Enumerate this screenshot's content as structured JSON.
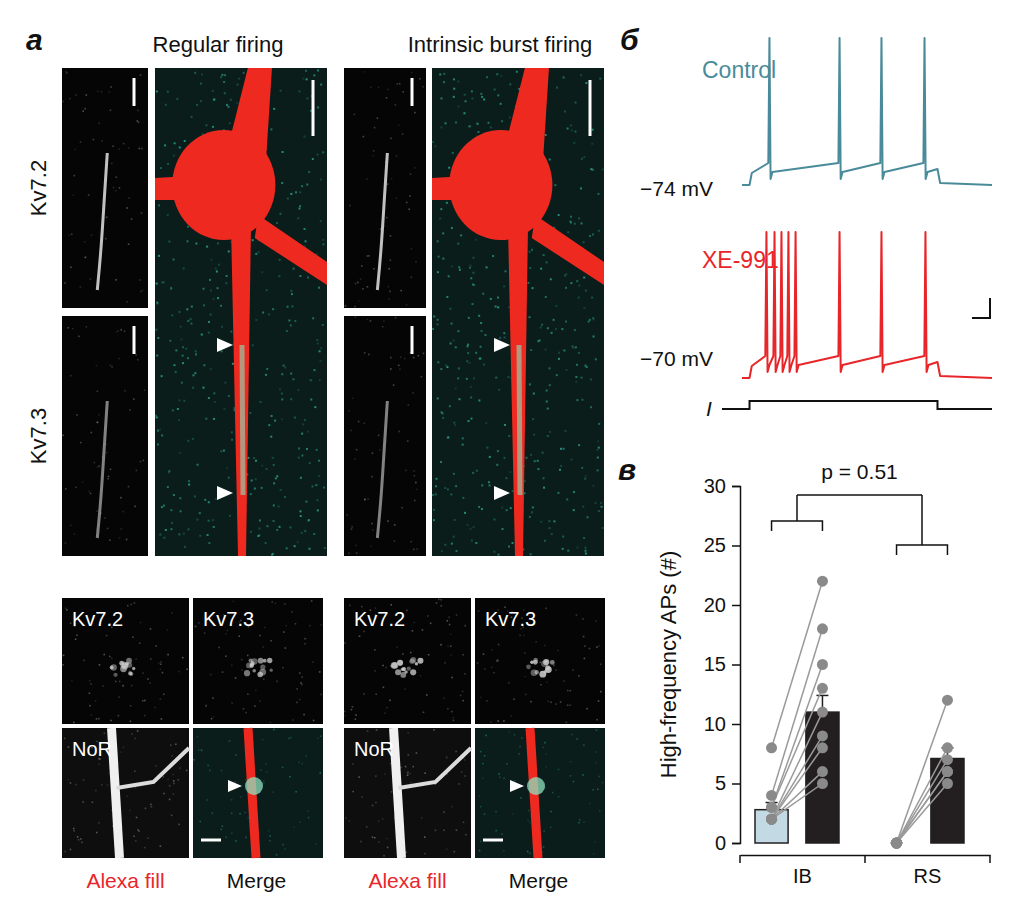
{
  "figure": {
    "panel_a": {
      "label": "а",
      "columns": [
        "Regular firing",
        "Intrinsic burst firing"
      ],
      "rows": [
        "Kv7.2",
        "Kv7.3"
      ],
      "lower": {
        "top_left": "Kv7.2",
        "top_right": "Kv7.3",
        "bottom_left": "NoR",
        "caption_left": "Alexa fill",
        "caption_right": "Merge"
      }
    },
    "panel_b": {
      "label": "б",
      "stimulus": "I",
      "step": [
        0,
        1000
      ],
      "xlim": [
        -40,
        1290
      ],
      "traces": [
        {
          "name": "Control",
          "color": "#4a8b9a",
          "baseline": "−74 mV",
          "spikes": [
            106,
            479,
            702,
            931
          ]
        },
        {
          "name": "XE-991",
          "color": "#e8262a",
          "baseline": "−70 mV",
          "spikes": [
            90,
            133,
            170,
            207,
            245,
            479,
            702,
            936
          ]
        }
      ]
    }
  },
  "chart_data": {
    "type": "bar",
    "title": "в",
    "ylabel": "High-frequency APs (#)",
    "categories": [
      "IB",
      "RS"
    ],
    "ylim": [
      0,
      30
    ],
    "yticks": [
      0,
      5,
      10,
      15,
      20,
      25,
      30
    ],
    "series": [
      {
        "color": "#c3d9e4",
        "values": [
          2.8,
          0
        ],
        "errors": [
          0.6,
          0
        ],
        "points": [
          [
            8,
            4,
            3,
            3,
            2,
            2,
            2,
            2,
            2
          ],
          [
            0,
            0,
            0,
            0,
            0,
            0
          ]
        ]
      },
      {
        "color": "#231f20",
        "values": [
          11,
          7.1
        ],
        "errors": [
          1.4,
          0.9
        ],
        "points": [
          [
            22,
            18,
            15,
            13,
            11,
            9,
            8,
            6,
            5
          ],
          [
            12,
            8,
            7,
            6,
            6,
            5
          ]
        ]
      }
    ],
    "annotations": [
      {
        "text": "p = 0.51"
      }
    ]
  }
}
